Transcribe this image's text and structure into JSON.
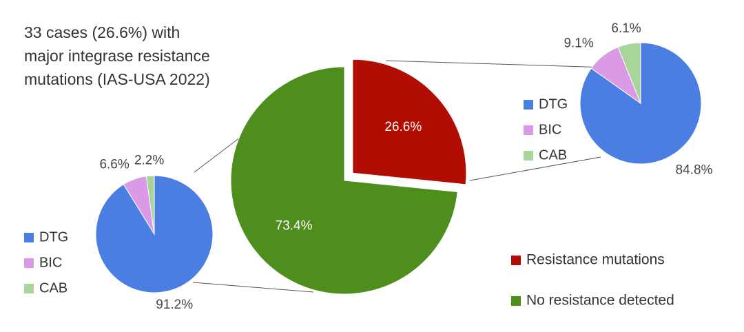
{
  "chart_data": [
    {
      "type": "pie",
      "annotation": [
        "33 cases (26.6%) with",
        "major integrase resistance",
        "mutations (IAS-USA 2022)"
      ],
      "categories": [
        "Resistance mutations",
        "No resistance detected"
      ],
      "values": [
        26.6,
        73.4
      ],
      "value_labels": [
        "26.6%",
        "73.4%"
      ],
      "colors": [
        "#b20d02",
        "#4e8e1d"
      ],
      "explode": [
        true,
        false
      ]
    },
    {
      "type": "pie",
      "categories": [
        "DTG",
        "BIC",
        "CAB"
      ],
      "values": [
        91.2,
        6.6,
        2.2
      ],
      "value_labels": [
        "91.2%",
        "6.6%",
        "2.2%"
      ],
      "colors": [
        "#4a7ee3",
        "#da9ae6",
        "#a9d49a"
      ]
    },
    {
      "type": "pie",
      "categories": [
        "DTG",
        "BIC",
        "CAB"
      ],
      "values": [
        84.8,
        9.1,
        6.1
      ],
      "value_labels": [
        "84.8%",
        "9.1%",
        "6.1%"
      ],
      "colors": [
        "#4a7ee3",
        "#da9ae6",
        "#a9d49a"
      ]
    }
  ]
}
